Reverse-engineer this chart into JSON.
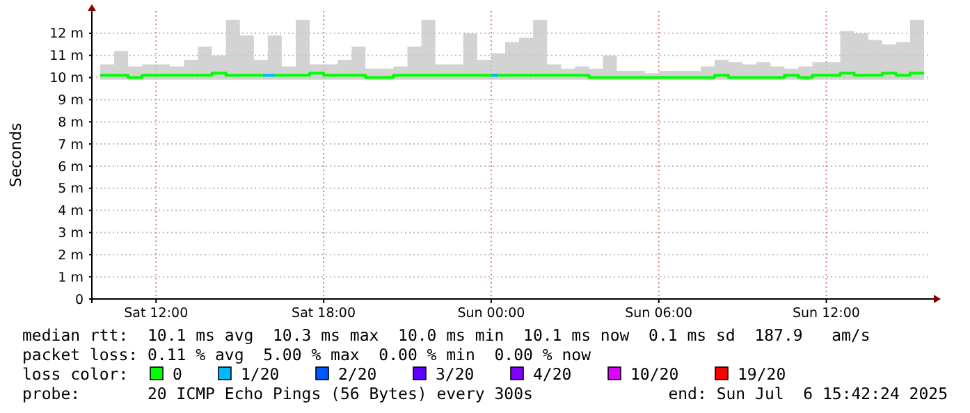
{
  "chart_data": {
    "type": "line",
    "ylabel": "Seconds",
    "xlim": [
      "2025-07-05T09:42",
      "2025-07-06T15:42"
    ],
    "xticks": [
      {
        "value": "2025-07-05T12:00",
        "label": "Sat 12:00"
      },
      {
        "value": "2025-07-05T18:00",
        "label": "Sat 18:00"
      },
      {
        "value": "2025-07-06T00:00",
        "label": "Sun 00:00"
      },
      {
        "value": "2025-07-06T06:00",
        "label": "Sun 06:00"
      },
      {
        "value": "2025-07-06T12:00",
        "label": "Sun 12:00"
      }
    ],
    "ylim": [
      0,
      13
    ],
    "yticks": [
      0,
      {
        "value": 1,
        "label": "1 m"
      },
      {
        "value": 2,
        "label": "2 m"
      },
      {
        "value": 3,
        "label": "3 m"
      },
      {
        "value": 4,
        "label": "4 m"
      },
      {
        "value": 5,
        "label": "5 m"
      },
      {
        "value": 6,
        "label": "6 m"
      },
      {
        "value": 7,
        "label": "7 m"
      },
      {
        "value": 8,
        "label": "8 m"
      },
      {
        "value": 9,
        "label": "9 m"
      },
      {
        "value": 10,
        "label": "10 m"
      },
      {
        "value": 11,
        "label": "11 m"
      },
      {
        "value": 12,
        "label": "12 m"
      }
    ],
    "grid": true,
    "legend": "bottom",
    "legend_title": "loss color:",
    "x": [
      "2025-07-05T10:00",
      "2025-07-05T10:30",
      "2025-07-05T11:00",
      "2025-07-05T11:30",
      "2025-07-05T12:00",
      "2025-07-05T12:30",
      "2025-07-05T13:00",
      "2025-07-05T13:30",
      "2025-07-05T14:00",
      "2025-07-05T14:30",
      "2025-07-05T15:00",
      "2025-07-05T15:30",
      "2025-07-05T16:00",
      "2025-07-05T16:30",
      "2025-07-05T17:00",
      "2025-07-05T17:30",
      "2025-07-05T18:00",
      "2025-07-05T18:30",
      "2025-07-05T19:00",
      "2025-07-05T19:30",
      "2025-07-05T20:00",
      "2025-07-05T20:30",
      "2025-07-05T21:00",
      "2025-07-05T21:30",
      "2025-07-05T22:00",
      "2025-07-05T22:30",
      "2025-07-05T23:00",
      "2025-07-05T23:30",
      "2025-07-06T00:00",
      "2025-07-06T00:30",
      "2025-07-06T01:00",
      "2025-07-06T01:30",
      "2025-07-06T02:00",
      "2025-07-06T02:30",
      "2025-07-06T03:00",
      "2025-07-06T03:30",
      "2025-07-06T04:00",
      "2025-07-06T04:30",
      "2025-07-06T05:00",
      "2025-07-06T05:30",
      "2025-07-06T06:00",
      "2025-07-06T06:30",
      "2025-07-06T07:00",
      "2025-07-06T07:30",
      "2025-07-06T08:00",
      "2025-07-06T08:30",
      "2025-07-06T09:00",
      "2025-07-06T09:30",
      "2025-07-06T10:00",
      "2025-07-06T10:30",
      "2025-07-06T11:00",
      "2025-07-06T11:30",
      "2025-07-06T12:00",
      "2025-07-06T12:30",
      "2025-07-06T13:00",
      "2025-07-06T13:30",
      "2025-07-06T14:00",
      "2025-07-06T14:30",
      "2025-07-06T15:00",
      "2025-07-06T15:30"
    ],
    "series": [
      {
        "name": "0",
        "color": "#00ff00",
        "values": [
          10.1,
          10.1,
          10.0,
          10.1,
          10.1,
          10.1,
          10.1,
          10.1,
          10.2,
          10.1,
          10.1,
          10.1,
          10.1,
          10.1,
          10.1,
          10.2,
          10.1,
          10.1,
          10.1,
          10.0,
          10.0,
          10.1,
          10.1,
          10.1,
          10.1,
          10.1,
          10.1,
          10.1,
          10.1,
          10.1,
          10.1,
          10.1,
          10.1,
          10.1,
          10.1,
          10.0,
          10.0,
          10.0,
          10.0,
          10.0,
          10.0,
          10.0,
          10.0,
          10.0,
          10.1,
          10.0,
          10.0,
          10.0,
          10.0,
          10.1,
          10.0,
          10.1,
          10.1,
          10.2,
          10.1,
          10.1,
          10.2,
          10.1,
          10.2,
          10.2
        ],
        "lower": [
          9.9,
          9.9,
          9.9,
          9.9,
          9.9,
          9.9,
          9.9,
          9.9,
          9.9,
          9.9,
          9.9,
          9.9,
          9.9,
          9.9,
          9.9,
          9.9,
          9.9,
          9.9,
          9.9,
          9.9,
          9.9,
          9.9,
          9.9,
          9.9,
          9.9,
          9.9,
          9.9,
          9.9,
          9.9,
          9.9,
          9.9,
          9.9,
          9.9,
          9.9,
          9.9,
          9.9,
          9.9,
          9.9,
          9.9,
          9.9,
          9.9,
          9.9,
          9.9,
          9.9,
          9.9,
          9.9,
          9.9,
          9.9,
          9.9,
          9.9,
          9.9,
          9.9,
          9.9,
          9.9,
          9.9,
          9.9,
          9.9,
          9.9,
          9.9,
          9.9
        ],
        "upper": [
          10.6,
          11.2,
          10.5,
          10.6,
          10.6,
          10.5,
          10.8,
          11.4,
          11.0,
          12.6,
          11.9,
          10.8,
          11.9,
          10.5,
          12.6,
          10.6,
          10.6,
          10.8,
          11.4,
          10.4,
          10.4,
          10.5,
          11.4,
          12.6,
          10.6,
          10.6,
          12.0,
          10.8,
          11.1,
          11.6,
          11.8,
          12.6,
          10.6,
          10.4,
          10.5,
          10.4,
          11.0,
          10.3,
          10.3,
          10.2,
          10.3,
          10.3,
          10.3,
          10.5,
          10.8,
          10.7,
          10.6,
          10.7,
          10.5,
          10.4,
          10.5,
          10.7,
          10.7,
          12.1,
          12.0,
          11.7,
          11.5,
          11.6,
          12.6,
          10.9
        ]
      },
      {
        "name": "1/20",
        "color": "#00b8ff",
        "x": [
          "2025-07-05T15:50",
          "2025-07-05T16:15",
          "2025-07-05T20:00",
          "2025-07-06T00:00",
          "2025-07-06T00:15"
        ],
        "values": [
          10.1,
          10.1,
          null,
          10.1,
          10.1
        ]
      },
      {
        "name": "2/20",
        "color": "#0059ff",
        "values": [
          null,
          null,
          null,
          null,
          null,
          null,
          null,
          null,
          null,
          null,
          null,
          null,
          null,
          null,
          null,
          null,
          null,
          null,
          null,
          null,
          null,
          null,
          null,
          null,
          null,
          null,
          null,
          null,
          null,
          null,
          null,
          null,
          null,
          null,
          null,
          null,
          null,
          null,
          null,
          null,
          null,
          null,
          null,
          null,
          null,
          null,
          null,
          null,
          null,
          null,
          null,
          null,
          null,
          null,
          null,
          null,
          null,
          null,
          null,
          null
        ]
      },
      {
        "name": "3/20",
        "color": "#5e00ff",
        "values": [
          null,
          null,
          null,
          null,
          null,
          null,
          null,
          null,
          null,
          null,
          null,
          null,
          null,
          null,
          null,
          null,
          null,
          null,
          null,
          null,
          null,
          null,
          null,
          null,
          null,
          null,
          null,
          null,
          null,
          null,
          null,
          null,
          null,
          null,
          null,
          null,
          null,
          null,
          null,
          null,
          null,
          null,
          null,
          null,
          null,
          null,
          null,
          null,
          null,
          null,
          null,
          null,
          null,
          null,
          null,
          null,
          null,
          null,
          null,
          null
        ]
      },
      {
        "name": "4/20",
        "color": "#7e00ff",
        "values": [
          null,
          null,
          null,
          null,
          null,
          null,
          null,
          null,
          null,
          null,
          null,
          null,
          null,
          null,
          null,
          null,
          null,
          null,
          null,
          null,
          null,
          null,
          null,
          null,
          null,
          null,
          null,
          null,
          null,
          null,
          null,
          null,
          null,
          null,
          null,
          null,
          null,
          null,
          null,
          null,
          null,
          null,
          null,
          null,
          null,
          null,
          null,
          null,
          null,
          null,
          null,
          null,
          null,
          null,
          null,
          null,
          null,
          null,
          null,
          null
        ]
      },
      {
        "name": "10/20",
        "color": "#dd00ff",
        "values": [
          null,
          null,
          null,
          null,
          null,
          null,
          null,
          null,
          null,
          null,
          null,
          null,
          null,
          null,
          null,
          null,
          null,
          null,
          null,
          null,
          null,
          null,
          null,
          null,
          null,
          null,
          null,
          null,
          null,
          null,
          null,
          null,
          null,
          null,
          null,
          null,
          null,
          null,
          null,
          null,
          null,
          null,
          null,
          null,
          null,
          null,
          null,
          null,
          null,
          null,
          null,
          null,
          null,
          null,
          null,
          null,
          null,
          null,
          null,
          null
        ]
      },
      {
        "name": "19/20",
        "color": "#ff0000",
        "values": [
          null,
          null,
          null,
          null,
          null,
          null,
          null,
          null,
          null,
          null,
          null,
          null,
          null,
          null,
          null,
          null,
          null,
          null,
          null,
          null,
          null,
          null,
          null,
          null,
          null,
          null,
          null,
          null,
          null,
          null,
          null,
          null,
          null,
          null,
          null,
          null,
          null,
          null,
          null,
          null,
          null,
          null,
          null,
          null,
          null,
          null,
          null,
          null,
          null,
          null,
          null,
          null,
          null,
          null,
          null,
          null,
          null,
          null,
          null,
          null
        ]
      }
    ],
    "annotations": [
      "median rtt:  10.1 ms avg  10.3 ms max  10.0 ms min  10.1 ms now  0.1 ms sd  187.9   am/s",
      "packet loss: 0.11 % avg  5.00 % max  0.00 % min  0.00 % now",
      "probe:       20 ICMP Echo Pings (56 Bytes) every 300s",
      "end: Sun Jul  6 15:42:24 2025"
    ]
  }
}
